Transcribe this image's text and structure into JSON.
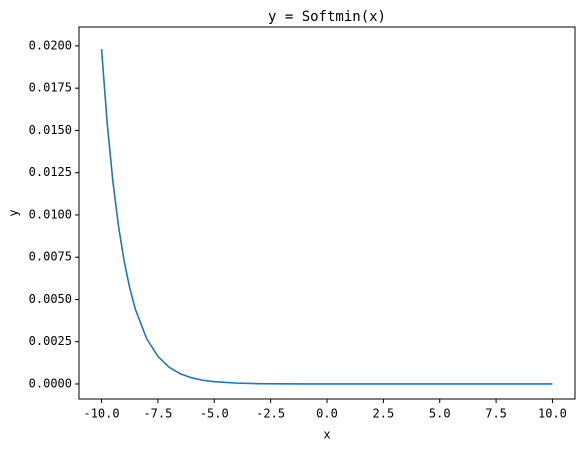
{
  "chart_data": {
    "type": "line",
    "title": "y =  Softmin(x)",
    "x_label": "x",
    "y_label": "y",
    "x": [
      -10,
      -9.75,
      -9.5,
      -9.25,
      -9,
      -8.75,
      -8.5,
      -8,
      -7.5,
      -7,
      -6.5,
      -6,
      -5.5,
      -5,
      -4,
      -3,
      -2,
      -1,
      0,
      2.5,
      5,
      7.5,
      10
    ],
    "series": [
      {
        "name": "Softmin(x)",
        "color": "#1f77b4",
        "values": [
          0.01982,
          0.01544,
          0.01202,
          0.00936,
          0.00729,
          0.00568,
          0.00442,
          0.00268,
          0.00163,
          0.000987,
          0.000599,
          0.000363,
          0.00022,
          0.000134,
          4.91e-05,
          1.81e-05,
          6.7e-06,
          2.5e-06,
          9e-07,
          0,
          0,
          0,
          0
        ]
      }
    ],
    "xlim": [
      -11,
      11
    ],
    "ylim": [
      -0.00089,
      0.02112
    ],
    "xticks": [
      {
        "value": -10,
        "label": "-10.0"
      },
      {
        "value": -7.5,
        "label": "-7.5"
      },
      {
        "value": -5,
        "label": "-5.0"
      },
      {
        "value": -2.5,
        "label": "-2.5"
      },
      {
        "value": 0,
        "label": "0.0"
      },
      {
        "value": 2.5,
        "label": "2.5"
      },
      {
        "value": 5,
        "label": "5.0"
      },
      {
        "value": 7.5,
        "label": "7.5"
      },
      {
        "value": 10,
        "label": "10.0"
      }
    ],
    "yticks": [
      {
        "value": 0,
        "label": "0.0000"
      },
      {
        "value": 0.0025,
        "label": "0.0025"
      },
      {
        "value": 0.005,
        "label": "0.0050"
      },
      {
        "value": 0.0075,
        "label": "0.0075"
      },
      {
        "value": 0.01,
        "label": "0.0100"
      },
      {
        "value": 0.0125,
        "label": "0.0125"
      },
      {
        "value": 0.015,
        "label": "0.0150"
      },
      {
        "value": 0.0175,
        "label": "0.0175"
      },
      {
        "value": 0.02,
        "label": "0.0200"
      }
    ]
  }
}
